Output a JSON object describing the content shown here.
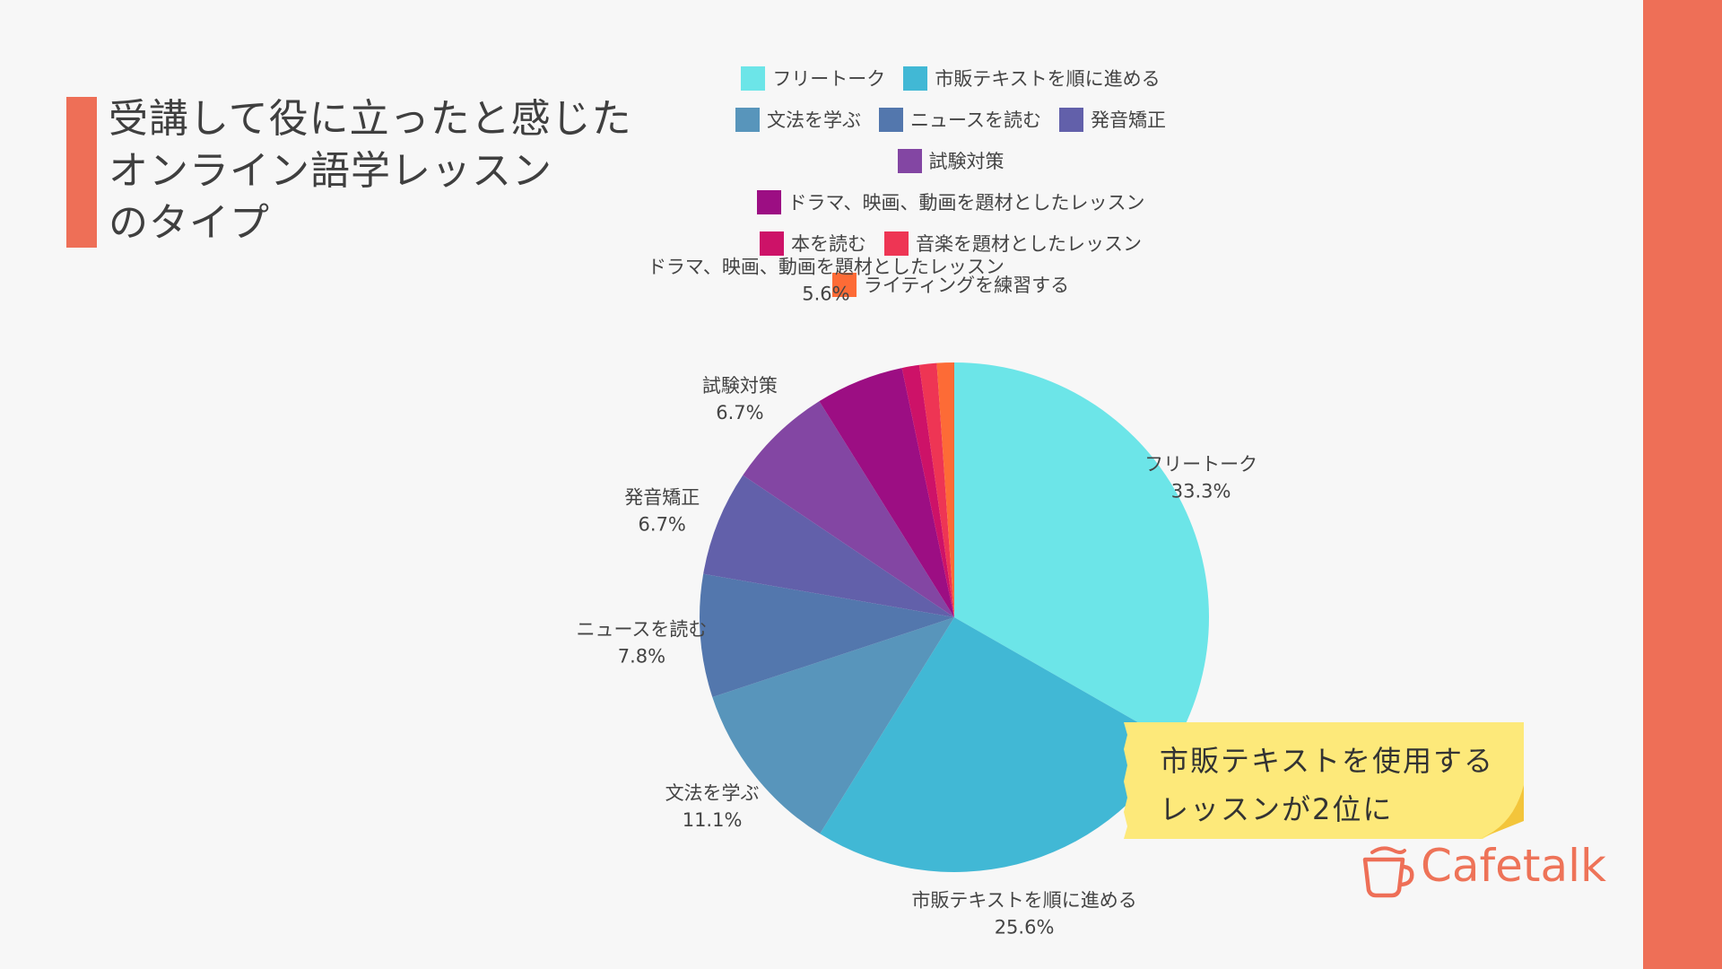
{
  "title": {
    "lines": [
      "受講して役に立ったと感じた",
      "オンライン語学レッスン",
      "のタイプ"
    ]
  },
  "colors": {
    "accent": "#ee6f57",
    "note_bg": "#fde97a",
    "note_curl": "#f3c53b",
    "text": "#3f3f3f"
  },
  "note": {
    "line1": "市販テキストを使用する",
    "line2": "レッスンが2位に"
  },
  "logo": {
    "text": "Cafetalk",
    "icon": "coffee-cup-icon"
  },
  "chart_data": {
    "type": "pie",
    "title": "受講して役に立ったと感じたオンライン語学レッスンのタイプ",
    "legend_position": "top",
    "slices": [
      {
        "label": "フリートーク",
        "value": 33.3,
        "display": "33.3%",
        "color": "#6ce5e8"
      },
      {
        "label": "市販テキストを順に進める",
        "value": 25.6,
        "display": "25.6%",
        "color": "#41b8d5"
      },
      {
        "label": "文法を学ぶ",
        "value": 11.1,
        "display": "11.1%",
        "color": "#5895bb"
      },
      {
        "label": "ニュースを読む",
        "value": 7.8,
        "display": "7.8%",
        "color": "#5377ad"
      },
      {
        "label": "発音矯正",
        "value": 6.7,
        "display": "6.7%",
        "color": "#6260aa"
      },
      {
        "label": "試験対策",
        "value": 6.7,
        "display": "6.7%",
        "color": "#8346a3"
      },
      {
        "label": "ドラマ、映画、動画を題材としたレッスン",
        "value": 5.6,
        "display": "5.6%",
        "color": "#9c0e83"
      },
      {
        "label": "本を読む",
        "value": 1.1,
        "display": "",
        "color": "#cd1268"
      },
      {
        "label": "音楽を題材としたレッスン",
        "value": 1.1,
        "display": "",
        "color": "#ee3554"
      },
      {
        "label": "ライティングを練習する",
        "value": 1.1,
        "display": "",
        "color": "#fd6b36"
      }
    ],
    "legend_rows": [
      [
        0,
        1
      ],
      [
        2,
        3,
        4
      ],
      [
        5
      ],
      [
        6
      ],
      [
        7,
        8
      ],
      [
        9
      ]
    ]
  }
}
